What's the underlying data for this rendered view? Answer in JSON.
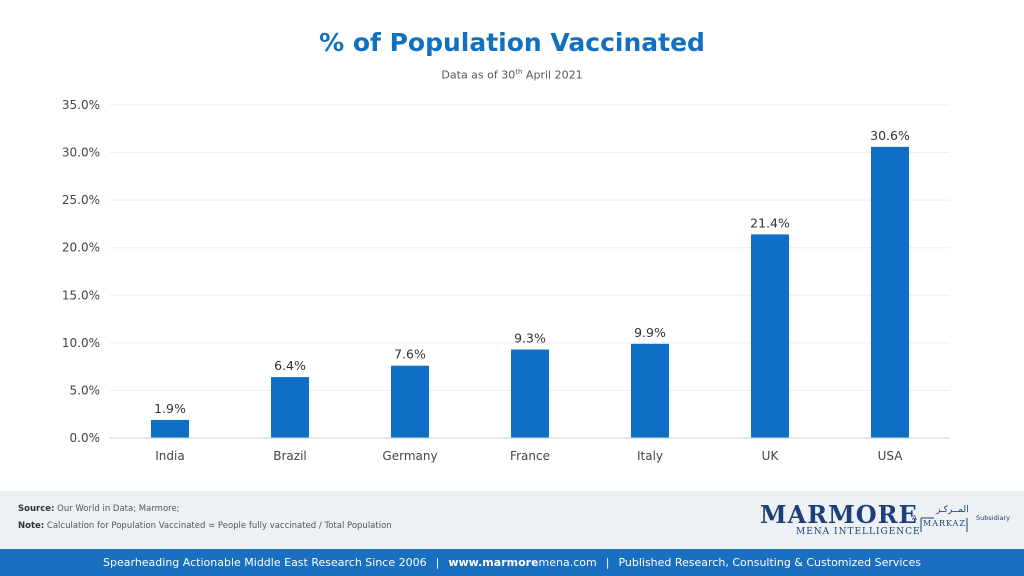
{
  "title": "% of Population Vaccinated",
  "subtitle": {
    "prefix": "Data as of 30",
    "sup": "th",
    "suffix": " April 2021"
  },
  "chart_data": {
    "type": "bar",
    "categories": [
      "India",
      "Brazil",
      "Germany",
      "France",
      "Italy",
      "UK",
      "USA"
    ],
    "values": [
      1.9,
      6.4,
      7.6,
      9.3,
      9.9,
      21.4,
      30.6
    ],
    "data_labels": [
      "1.9%",
      "6.4%",
      "7.6%",
      "9.3%",
      "9.9%",
      "21.4%",
      "30.6%"
    ],
    "ylim": [
      0,
      35
    ],
    "yticks": [
      0,
      5,
      10,
      15,
      20,
      25,
      30,
      35
    ],
    "ytick_labels": [
      "0.0%",
      "5.0%",
      "10.0%",
      "15.0%",
      "20.0%",
      "25.0%",
      "30.0%",
      "35.0%"
    ],
    "grid": true,
    "bar_color": "#0F6FC6"
  },
  "footer": {
    "source_label": "Source:",
    "source_text": "Our World in Data; Marmore;",
    "note_label": "Note:",
    "note_text": "Calculation for Population Vaccinated = People fully vaccinated / Total Population"
  },
  "logo": {
    "main": "MARMORE",
    "sub": "MENA INTELLIGENCE",
    "a": "A",
    "markaz_arabic": "المــركـز",
    "markaz": "MARKAZ",
    "subsidiary": "Subsidiary"
  },
  "bottom_bar": {
    "left": "Spearheading Actionable Middle East Research Since 2006",
    "url_bold": "www.marmore",
    "url_rest": "mena.com",
    "right": "Published Research, Consulting & Customized Services",
    "separator": "|"
  }
}
